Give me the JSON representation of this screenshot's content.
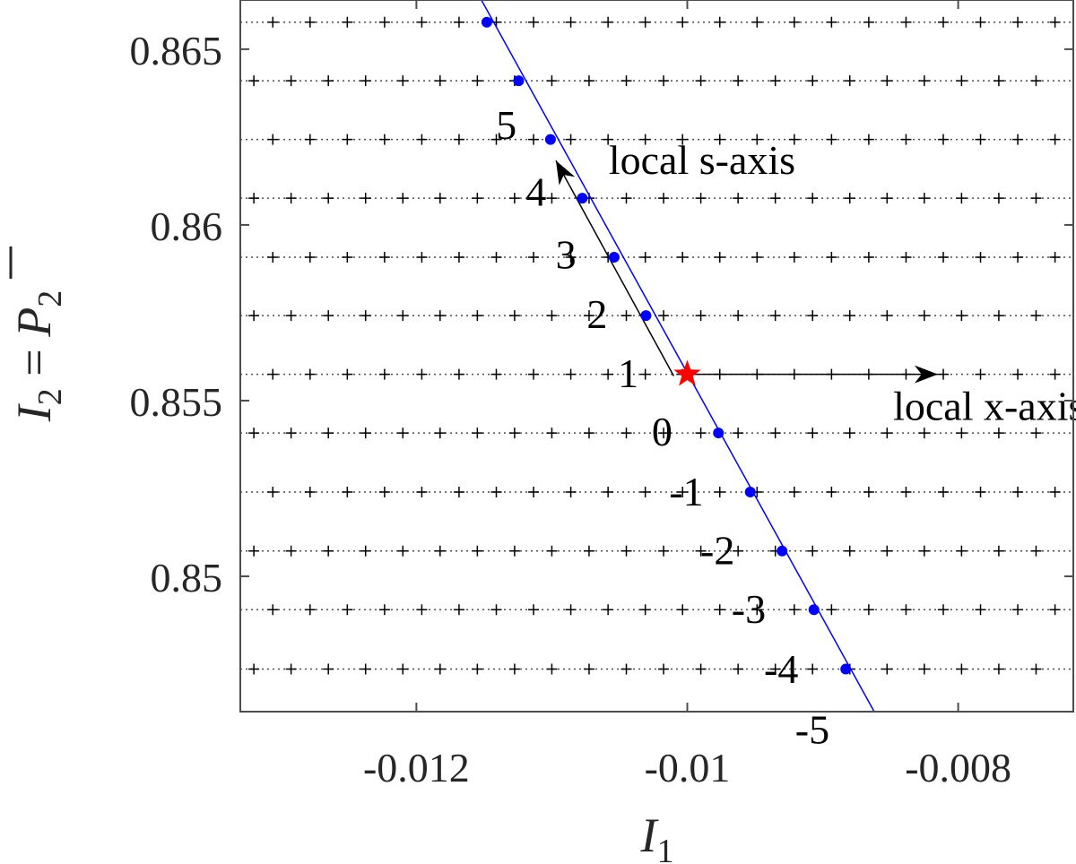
{
  "chart_data": {
    "type": "scatter",
    "xlabel": "I",
    "xlabel_sub": "1",
    "ylabel_parts": [
      "I",
      "2",
      " = ",
      "P",
      "2"
    ],
    "xlim": [
      -0.0133,
      -0.00715
    ],
    "ylim": [
      0.84615,
      0.8664
    ],
    "xticks": [
      -0.012,
      -0.01,
      -0.008
    ],
    "xtick_labels": [
      "-0.012",
      "-0.01",
      "-0.008"
    ],
    "yticks": [
      0.85,
      0.855,
      0.86,
      0.865
    ],
    "ytick_labels": [
      "0.85",
      "0.855",
      "0.86",
      "0.865"
    ],
    "grid": false,
    "colors": {
      "line": "#0000ff",
      "points": "#0000ff",
      "star": "#ff0000",
      "grid_marks": "#000000",
      "arrows": "#000000"
    },
    "horizontal_dotted_lines_y": [
      0.84736,
      0.84905,
      0.85072,
      0.8524,
      0.85408,
      0.85575,
      0.85742,
      0.85908,
      0.86076,
      0.86243,
      0.8641,
      0.86577
    ],
    "plus_markers_x": [
      -0.0132,
      -0.012925,
      -0.01265,
      -0.012375,
      -0.0121,
      -0.011825,
      -0.01155,
      -0.011275,
      -0.011,
      -0.010725,
      -0.01045,
      -0.010175,
      -0.0099,
      -0.009625,
      -0.00935,
      -0.009075,
      -0.0088,
      -0.008525,
      -0.00825,
      -0.007975,
      -0.0077,
      -0.007425
    ],
    "plus_marker_offsets": [
      0,
      0.00014,
      0,
      0.00014,
      0,
      0.00014,
      0,
      0.00014,
      0,
      0.00014,
      0,
      0.00014
    ],
    "line": {
      "x": [
        -0.01152,
        -0.00862
      ],
      "y": [
        0.8664,
        0.84615
      ]
    },
    "points": {
      "x": [
        -0.01148,
        -0.011245,
        -0.01101,
        -0.010775,
        -0.01054,
        -0.010305,
        -0.00977,
        -0.009535,
        -0.0093,
        -0.009065,
        -0.00883
      ],
      "y": [
        0.86577,
        0.8641,
        0.86243,
        0.86076,
        0.85908,
        0.85742,
        0.85408,
        0.8524,
        0.85072,
        0.84905,
        0.84736
      ]
    },
    "star": {
      "x": -0.01,
      "y": 0.85575
    },
    "point_labels": [
      {
        "text": "5",
        "x": -0.01126,
        "y": 0.86245
      },
      {
        "text": "4",
        "x": -0.01104,
        "y": 0.86055
      },
      {
        "text": "3",
        "x": -0.01082,
        "y": 0.85876
      },
      {
        "text": "2",
        "x": -0.01059,
        "y": 0.85706
      },
      {
        "text": "1",
        "x": -0.01036,
        "y": 0.85538
      },
      {
        "text": "0",
        "x": -0.01011,
        "y": 0.85372
      },
      {
        "text": "-1",
        "x": -0.00988,
        "y": 0.85202
      },
      {
        "text": "-2",
        "x": -0.00965,
        "y": 0.85035
      },
      {
        "text": "-3",
        "x": -0.00942,
        "y": 0.84868
      },
      {
        "text": "-4",
        "x": -0.00918,
        "y": 0.84697
      },
      {
        "text": "-5",
        "x": -0.00895,
        "y": 0.84524
      }
    ],
    "arrows": [
      {
        "name": "local-x-axis",
        "from": [
          -0.00996,
          0.85575
        ],
        "to": [
          -0.00815,
          0.85575
        ]
      },
      {
        "name": "local-s-axis",
        "from": [
          -0.0101,
          0.8557
        ],
        "to": [
          -0.01097,
          0.86183
        ]
      }
    ],
    "annotations": [
      {
        "text": "local s-axis",
        "x": -0.01058,
        "y": 0.86145
      },
      {
        "text": "local x-axis",
        "x": -0.00848,
        "y": 0.85445
      }
    ]
  }
}
